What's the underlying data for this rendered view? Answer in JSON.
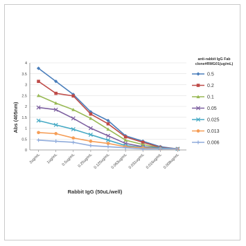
{
  "chart_data": {
    "type": "line",
    "title": "",
    "xlabel": "Rabbit IgG (50uL/well)",
    "ylabel": "Abs (405nm)",
    "ylim": [
      0,
      4
    ],
    "yticks": [
      "0",
      "0.5",
      "1",
      "1.5",
      "2",
      "2.5",
      "3",
      "3.5",
      "4"
    ],
    "categories": [
      "2ug/mL",
      "1ug/mL",
      "0.5ug/mL",
      "0.25ug/mL",
      "0.125ug/mL",
      "0.063ug/mL",
      "0.031ug/mL",
      "0.016ug/mL",
      "0.008ug/mL"
    ],
    "legend_title": "anti-rabbit IgG Fab clone#RMG01(ug/mL)",
    "legend_title_lines": [
      "anti-rabbit IgG Fab",
      "clone#RMG01(ug/mL)"
    ],
    "legend_position": "right",
    "grid": true,
    "series": [
      {
        "name": "0.5",
        "color": "#4a7ebb",
        "marker": "diamond",
        "values": [
          3.75,
          3.15,
          2.55,
          1.75,
          1.35,
          0.65,
          0.4,
          0.15,
          0.05
        ]
      },
      {
        "name": "0.2",
        "color": "#be4b48",
        "marker": "square",
        "values": [
          3.15,
          2.6,
          2.48,
          1.65,
          1.2,
          0.6,
          0.35,
          0.12,
          0.05
        ]
      },
      {
        "name": "0.1",
        "color": "#98b954",
        "marker": "triangle",
        "values": [
          2.5,
          2.15,
          1.85,
          1.45,
          0.95,
          0.45,
          0.25,
          0.1,
          0.05
        ]
      },
      {
        "name": "0.05",
        "color": "#7d60a0",
        "marker": "x",
        "values": [
          1.95,
          1.85,
          1.45,
          1.0,
          0.65,
          0.3,
          0.15,
          0.1,
          0.05
        ]
      },
      {
        "name": "0.025",
        "color": "#46aac5",
        "marker": "x",
        "values": [
          1.35,
          1.15,
          0.95,
          0.7,
          0.45,
          0.2,
          0.12,
          0.08,
          0.05
        ]
      },
      {
        "name": "0.013",
        "color": "#f59d56",
        "marker": "circle",
        "values": [
          0.8,
          0.75,
          0.55,
          0.4,
          0.3,
          0.15,
          0.1,
          0.05,
          0.05
        ]
      },
      {
        "name": "0.006",
        "color": "#8fabdb",
        "marker": "plus",
        "values": [
          0.45,
          0.4,
          0.35,
          0.2,
          0.15,
          0.1,
          0.05,
          0.05,
          0.05
        ]
      }
    ]
  }
}
